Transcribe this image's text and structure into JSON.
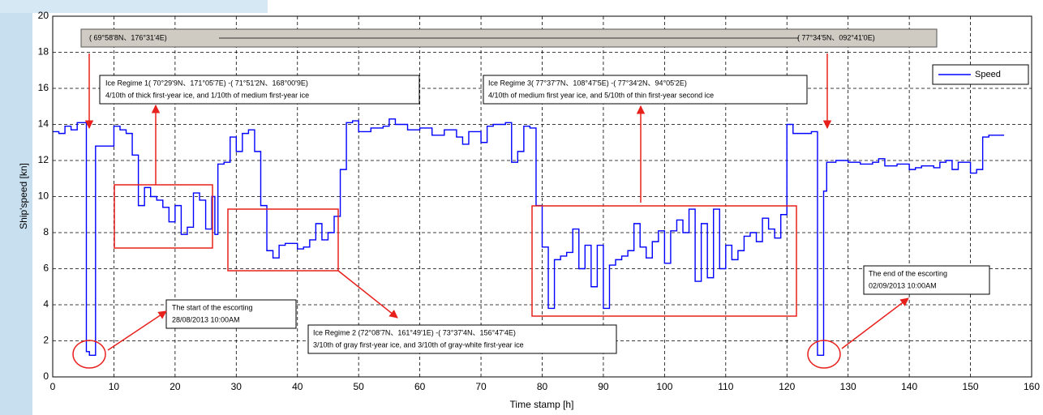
{
  "chart_data": {
    "type": "line",
    "drawstyle": "steps-post",
    "grid": true,
    "legend": "upper right",
    "xlabel": "Time stamp [h]",
    "ylabel": "Ship'speed [kn]",
    "xlim": [
      0,
      160
    ],
    "ylim": [
      0,
      20
    ],
    "xticks": [
      0,
      10,
      20,
      30,
      40,
      50,
      60,
      70,
      80,
      90,
      100,
      110,
      120,
      130,
      140,
      150,
      160
    ],
    "yticks": [
      0,
      2,
      4,
      6,
      8,
      10,
      12,
      14,
      16,
      18,
      20
    ],
    "x": [
      0,
      1,
      2,
      3,
      4,
      5,
      5.5,
      6,
      7,
      10,
      11,
      12,
      13,
      14,
      15,
      16,
      17,
      18,
      19,
      20,
      21,
      22,
      23,
      24,
      25,
      26,
      26.5,
      27,
      28,
      29,
      30,
      31,
      32,
      33,
      34,
      35,
      36,
      37,
      38,
      39,
      40,
      41,
      42,
      43,
      44,
      45,
      46,
      47,
      48,
      49,
      50,
      52,
      54,
      55,
      56,
      58,
      60,
      62,
      64,
      66,
      67,
      68,
      70,
      71,
      72,
      74,
      75,
      76,
      77,
      78,
      79,
      80,
      81,
      82,
      83,
      84,
      85,
      86,
      87,
      88,
      89,
      90,
      91,
      92,
      93,
      94,
      95,
      96,
      97,
      98,
      99,
      100,
      101,
      102,
      103,
      104,
      105,
      106,
      107,
      108,
      109,
      110,
      111,
      112,
      113,
      114,
      115,
      116,
      117,
      118,
      119,
      120,
      121,
      124,
      125,
      126,
      126.5,
      128,
      130,
      132,
      134,
      135,
      136,
      138,
      140,
      141,
      142,
      144,
      145,
      146,
      147,
      148,
      150,
      151,
      152,
      153,
      155.5
    ],
    "series": [
      {
        "name": "Speed",
        "color": "#0000ff",
        "values": [
          13.6,
          13.5,
          13.9,
          13.7,
          14.1,
          14.1,
          1.4,
          1.2,
          12.8,
          13.9,
          13.7,
          13.5,
          12.3,
          9.5,
          10.5,
          10.0,
          9.8,
          9.4,
          8.6,
          9.5,
          7.9,
          8.3,
          10.2,
          9.8,
          8.2,
          10.0,
          7.9,
          11.8,
          11.9,
          13.3,
          12.5,
          13.5,
          13.7,
          12.5,
          9.5,
          7.0,
          6.6,
          7.3,
          7.4,
          7.4,
          7.1,
          7.2,
          7.6,
          8.5,
          7.6,
          8.0,
          8.9,
          11.5,
          14.1,
          14.2,
          13.6,
          13.8,
          13.9,
          14.3,
          14.0,
          13.7,
          13.8,
          13.4,
          13.7,
          13.3,
          12.9,
          13.6,
          13.0,
          13.9,
          14.0,
          14.1,
          11.9,
          12.5,
          13.9,
          13.8,
          9.5,
          7.2,
          3.8,
          6.5,
          6.7,
          6.9,
          8.2,
          6.0,
          7.3,
          5.0,
          7.3,
          3.8,
          6.2,
          6.5,
          6.7,
          7.0,
          8.5,
          7.2,
          6.6,
          7.5,
          8.1,
          6.3,
          8.1,
          8.7,
          8.0,
          9.3,
          5.3,
          8.5,
          5.5,
          9.3,
          6.0,
          7.3,
          6.5,
          7.0,
          7.8,
          8.0,
          7.5,
          8.8,
          8.2,
          7.7,
          9.0,
          14.0,
          13.5,
          13.6,
          1.2,
          10.3,
          11.9,
          12.0,
          11.9,
          11.8,
          11.9,
          12.1,
          11.7,
          11.8,
          11.5,
          11.6,
          11.7,
          11.6,
          11.9,
          12.0,
          11.5,
          11.9,
          11.3,
          11.5,
          13.3,
          13.4,
          13.4
        ]
      }
    ],
    "annotations": {
      "route_start": "( 69°58'8N、176°31'4E)",
      "route_end": "( 77°34'5N、092°41'0E)",
      "regime1": [
        "Ice Regime 1( 70°29'9N、171°05'7E) -( 71°51'2N、168°00'9E)",
        "4/10th of thick first-year ice, and 1/10th of medium first-year ice"
      ],
      "regime2": [
        "Ice Regime 2 (72°08'7N、161°49'1E) -( 73°37'4N、156°47'4E)",
        "3/10th of gray first-year ice, and 3/10th of gray-white first-year ice"
      ],
      "regime3": [
        "Ice Regime 3( 77°37'7N、108°47'5E) -( 77°34'2N、94°05'2E)",
        "4/10th of medium first year ice, and 5/10th of thin first-year second ice"
      ],
      "start": [
        "The start of the escorting",
        "28/08/2013  10:00AM"
      ],
      "end": [
        "The end of the escorting",
        "02/09/2013  10:00AM"
      ]
    }
  }
}
